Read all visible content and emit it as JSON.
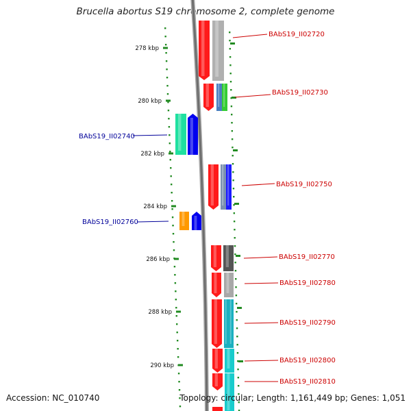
{
  "title": "Brucella abortus S19 chromosome 2, complete genome",
  "footer": {
    "accession": "Accession: NC_010740",
    "summary": "Topology: circular; Length: 1,161,449 bp; Genes: 1,051"
  },
  "colors": {
    "forward_label": "#cc0000",
    "reverse_label": "#000099",
    "axis_tick": "#228b22",
    "backbone": "#808080"
  },
  "ticks": [
    {
      "label": "278 kbp"
    },
    {
      "label": "280 kbp"
    },
    {
      "label": "282 kbp"
    },
    {
      "label": "284 kbp"
    },
    {
      "label": "286 kbp"
    },
    {
      "label": "288 kbp"
    },
    {
      "label": "290 kbp"
    }
  ],
  "genes": [
    {
      "label": "BAbS19_II02720",
      "strand": "forward",
      "colors": [
        "#ff1a1a",
        "#b0b0b0"
      ]
    },
    {
      "label": "BAbS19_II02730",
      "strand": "forward",
      "colors": [
        "#ff1a1a",
        "#4a7fc0",
        "#33cc33"
      ]
    },
    {
      "label": "BAbS19_II02740",
      "strand": "reverse",
      "colors": [
        "#1fe0a0",
        "#0000ee"
      ]
    },
    {
      "label": "BAbS19_II02750",
      "strand": "forward",
      "colors": [
        "#ff1a1a",
        "#7a90b0",
        "#1a1aff"
      ]
    },
    {
      "label": "BAbS19_II02760",
      "strand": "reverse",
      "colors": [
        "#ff9900",
        "#0000ee"
      ]
    },
    {
      "label": "BAbS19_II02770",
      "strand": "forward",
      "colors": [
        "#ff1a1a",
        "#555555"
      ]
    },
    {
      "label": "BAbS19_II02780",
      "strand": "forward",
      "colors": [
        "#ff1a1a",
        "#a8a8a8"
      ]
    },
    {
      "label": "BAbS19_II02790",
      "strand": "forward",
      "colors": [
        "#ff1a1a",
        "#1ab0c0"
      ]
    },
    {
      "label": "BAbS19_II02800",
      "strand": "forward",
      "colors": [
        "#ff1a1a",
        "#19cccc"
      ]
    },
    {
      "label": "BAbS19_II02810",
      "strand": "forward",
      "colors": [
        "#ff1a1a",
        "#19cccc"
      ]
    }
  ]
}
